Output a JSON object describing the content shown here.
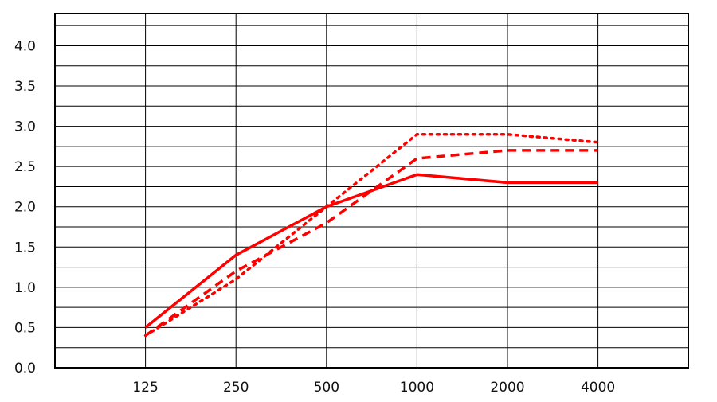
{
  "chart_data": {
    "type": "line",
    "title": "",
    "xlabel": "",
    "ylabel": "",
    "categories": [
      "125",
      "250",
      "500",
      "1000",
      "2000",
      "4000"
    ],
    "ylim": [
      0,
      4.4
    ],
    "yticks": [
      "0.0",
      "0.5",
      "1.0",
      "1.5",
      "2.0",
      "2.5",
      "3.0",
      "3.5",
      "4.0"
    ],
    "grid": true,
    "legend": "none",
    "series_color": "#ff0000",
    "series": [
      {
        "style": "solid",
        "values": [
          0.5,
          1.4,
          2.0,
          2.4,
          2.3,
          2.3
        ]
      },
      {
        "style": "dashed",
        "values": [
          0.4,
          1.2,
          1.8,
          2.6,
          2.7,
          2.7
        ]
      },
      {
        "style": "dotted",
        "values": [
          0.4,
          1.1,
          2.0,
          2.9,
          2.9,
          2.8
        ]
      }
    ]
  }
}
